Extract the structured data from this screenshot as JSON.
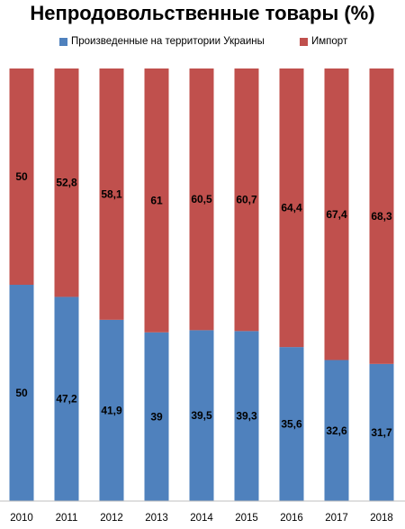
{
  "chart_data": {
    "type": "bar",
    "stacked": true,
    "title": "Непродовольственные товары (%)",
    "categories": [
      "2010",
      "2011",
      "2012",
      "2013",
      "2014",
      "2015",
      "2016",
      "2017",
      "2018"
    ],
    "series": [
      {
        "name": "Произведенные  на территории Украины",
        "color": "#4f81bd",
        "values": [
          50,
          47.2,
          41.9,
          39,
          39.5,
          39.3,
          35.6,
          32.6,
          31.7
        ],
        "labels": [
          "50",
          "47,2",
          "41,9",
          "39",
          "39,5",
          "39,3",
          "35,6",
          "32,6",
          "31,7"
        ]
      },
      {
        "name": "Импорт",
        "color": "#c0504d",
        "values": [
          50,
          52.8,
          58.1,
          61,
          60.5,
          60.7,
          64.4,
          67.4,
          68.3
        ],
        "labels": [
          "50",
          "52,8",
          "58,1",
          "61",
          "60,5",
          "60,7",
          "64,4",
          "67,4",
          "68,3"
        ]
      }
    ],
    "ylim": [
      0,
      100
    ],
    "grid": false,
    "legend_position": "top"
  }
}
